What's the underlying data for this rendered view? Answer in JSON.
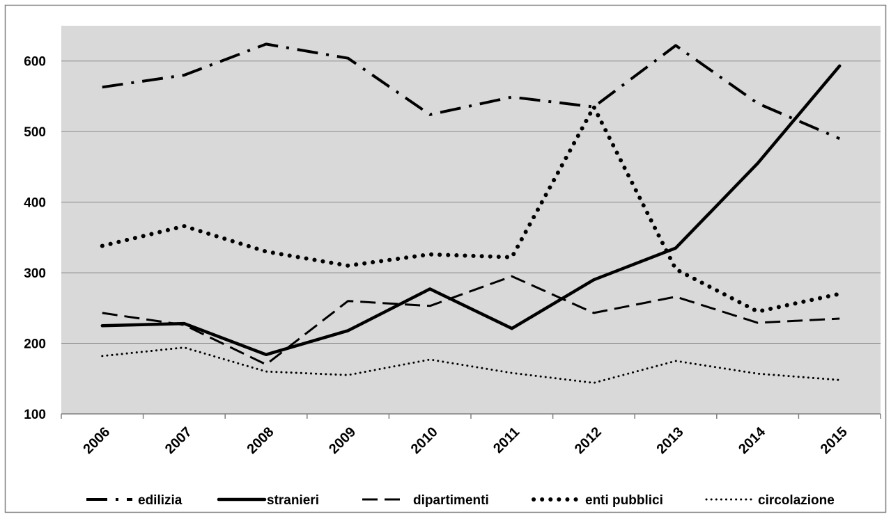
{
  "chart_data": {
    "type": "line",
    "title": "",
    "xlabel": "",
    "ylabel": "",
    "categories": [
      "2006",
      "2007",
      "2008",
      "2009",
      "2010",
      "2011",
      "2012",
      "2013",
      "2014",
      "2015"
    ],
    "ylim": [
      100,
      650
    ],
    "yticks": [
      100,
      200,
      300,
      400,
      500,
      600
    ],
    "grid": true,
    "legend": "bottom",
    "plot_background": "#d9d9d9",
    "series": [
      {
        "name": "edilizia",
        "style": "dashdot",
        "values": [
          563,
          580,
          624,
          604,
          524,
          549,
          535,
          622,
          540,
          490
        ]
      },
      {
        "name": "stranieri",
        "style": "solid",
        "values": [
          225,
          228,
          184,
          218,
          277,
          221,
          290,
          335,
          455,
          593
        ]
      },
      {
        "name": "dipartimenti",
        "style": "dashed",
        "values": [
          243,
          226,
          170,
          260,
          253,
          295,
          243,
          266,
          229,
          235
        ]
      },
      {
        "name": "enti pubblici",
        "style": "dotted-heavy",
        "values": [
          338,
          366,
          330,
          310,
          326,
          322,
          535,
          305,
          245,
          270
        ]
      },
      {
        "name": "circolazione",
        "style": "dotted-light",
        "values": [
          182,
          194,
          160,
          155,
          177,
          158,
          144,
          175,
          157,
          148
        ]
      }
    ]
  }
}
